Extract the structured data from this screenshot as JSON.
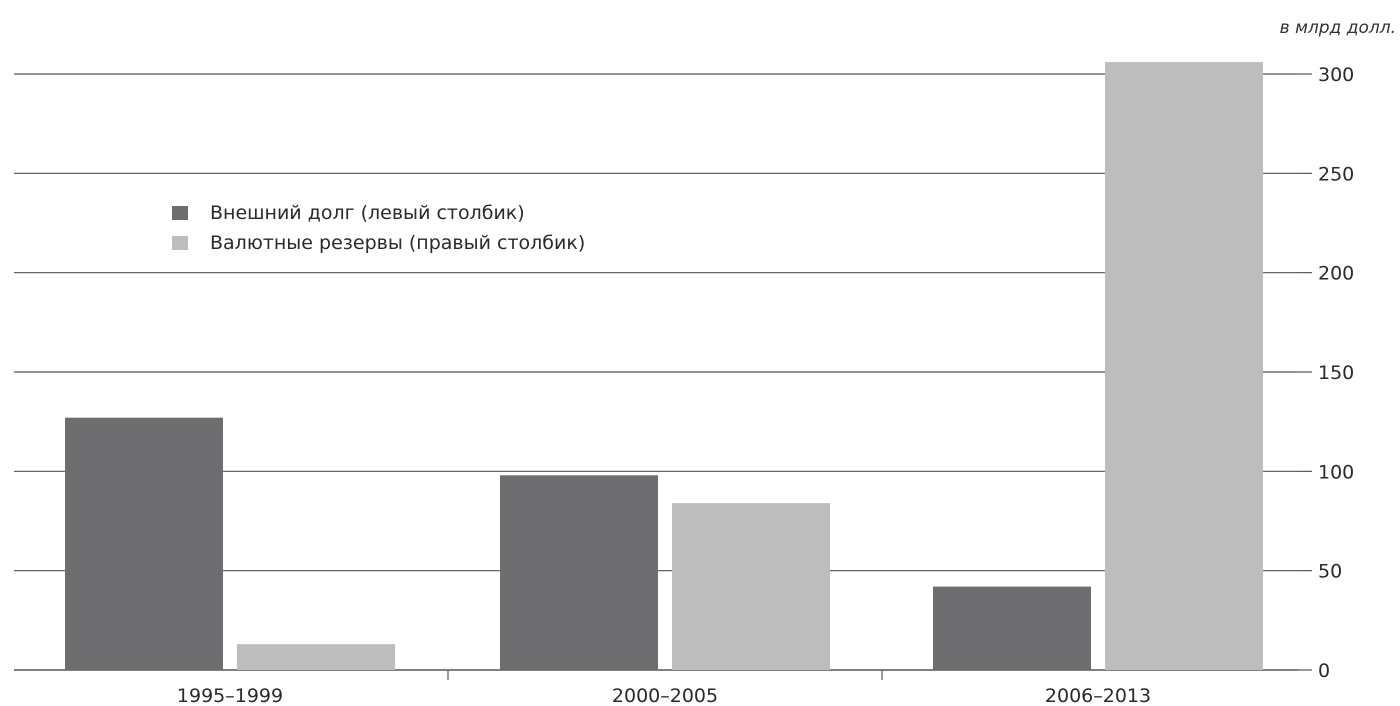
{
  "chart_data": {
    "type": "bar",
    "unit_label": "в млрд долл.",
    "categories": [
      "1995–1999",
      "2000–2005",
      "2006–2013"
    ],
    "series": [
      {
        "name": "Внешний долг (левый столбик)",
        "color": "#6e6e70",
        "values": [
          127,
          98,
          42
        ]
      },
      {
        "name": "Валютные резервы (правый столбик)",
        "color": "#bdbdbd",
        "values": [
          13,
          84,
          306
        ]
      }
    ],
    "yticks": [
      0,
      50,
      100,
      150,
      200,
      250,
      300
    ],
    "ylim": [
      0,
      300
    ],
    "y_axis_side": "right",
    "grid": true,
    "legend_placement": "top-left"
  }
}
